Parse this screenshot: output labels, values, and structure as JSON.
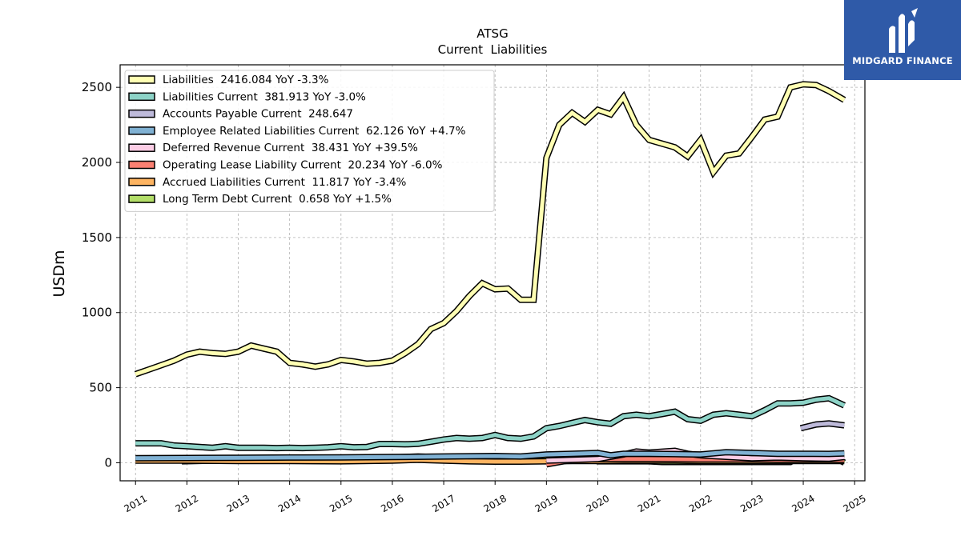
{
  "brand": {
    "name": "MIDGARD FINANCE",
    "color": "#2f5aa8"
  },
  "chart_data": {
    "type": "line",
    "title": "ATSG",
    "subtitle": "Current  Liabilities",
    "ylabel": "USDm",
    "xlabel": "",
    "xlim": [
      2010.7,
      2025.2
    ],
    "ylim": [
      -120,
      2650
    ],
    "yticks": [
      0,
      500,
      1000,
      1500,
      2000,
      2500
    ],
    "xticks": [
      "2011",
      "2012",
      "2013",
      "2014",
      "2015",
      "2016",
      "2017",
      "2018",
      "2019",
      "2020",
      "2021",
      "2022",
      "2023",
      "2024",
      "2025"
    ],
    "grid": true,
    "legend_position": "top-left",
    "series": [
      {
        "name": "Liabilities  2416.084 YoY -3.3%",
        "color": "#ffffb3",
        "points": [
          [
            2011.0,
            590
          ],
          [
            2011.25,
            620
          ],
          [
            2011.5,
            650
          ],
          [
            2011.75,
            680
          ],
          [
            2012.0,
            720
          ],
          [
            2012.25,
            740
          ],
          [
            2012.5,
            730
          ],
          [
            2012.75,
            725
          ],
          [
            2013.0,
            740
          ],
          [
            2013.25,
            780
          ],
          [
            2013.5,
            760
          ],
          [
            2013.75,
            740
          ],
          [
            2014.0,
            665
          ],
          [
            2014.25,
            655
          ],
          [
            2014.5,
            640
          ],
          [
            2014.75,
            655
          ],
          [
            2015.0,
            685
          ],
          [
            2015.25,
            675
          ],
          [
            2015.5,
            660
          ],
          [
            2015.75,
            665
          ],
          [
            2016.0,
            680
          ],
          [
            2016.25,
            730
          ],
          [
            2016.5,
            790
          ],
          [
            2016.75,
            890
          ],
          [
            2017.0,
            930
          ],
          [
            2017.25,
            1010
          ],
          [
            2017.5,
            1110
          ],
          [
            2017.75,
            1195
          ],
          [
            2018.0,
            1155
          ],
          [
            2018.25,
            1160
          ],
          [
            2018.5,
            1085
          ],
          [
            2018.75,
            1085
          ],
          [
            2019.0,
            2030
          ],
          [
            2019.25,
            2250
          ],
          [
            2019.5,
            2330
          ],
          [
            2019.75,
            2270
          ],
          [
            2020.0,
            2350
          ],
          [
            2020.25,
            2320
          ],
          [
            2020.5,
            2435
          ],
          [
            2020.75,
            2250
          ],
          [
            2021.0,
            2150
          ],
          [
            2021.5,
            2100
          ],
          [
            2021.75,
            2040
          ],
          [
            2022.0,
            2150
          ],
          [
            2022.25,
            1935
          ],
          [
            2022.5,
            2045
          ],
          [
            2022.75,
            2060
          ],
          [
            2023.0,
            2170
          ],
          [
            2023.25,
            2285
          ],
          [
            2023.5,
            2305
          ],
          [
            2023.75,
            2500
          ],
          [
            2024.0,
            2520
          ],
          [
            2024.25,
            2515
          ],
          [
            2024.5,
            2475
          ],
          [
            2024.8,
            2416
          ]
        ]
      },
      {
        "name": "Liabilities Current  381.913 YoY -3.0%",
        "color": "#8dd3c7",
        "points": [
          [
            2011.0,
            130
          ],
          [
            2011.25,
            130
          ],
          [
            2011.5,
            130
          ],
          [
            2011.75,
            115
          ],
          [
            2012.0,
            110
          ],
          [
            2012.25,
            105
          ],
          [
            2012.5,
            100
          ],
          [
            2012.75,
            110
          ],
          [
            2013.0,
            100
          ],
          [
            2013.25,
            100
          ],
          [
            2013.5,
            100
          ],
          [
            2013.75,
            98
          ],
          [
            2014.0,
            100
          ],
          [
            2014.25,
            98
          ],
          [
            2014.5,
            100
          ],
          [
            2014.75,
            103
          ],
          [
            2015.0,
            110
          ],
          [
            2015.25,
            103
          ],
          [
            2015.5,
            105
          ],
          [
            2015.75,
            125
          ],
          [
            2016.0,
            125
          ],
          [
            2016.25,
            123
          ],
          [
            2016.5,
            126
          ],
          [
            2016.75,
            140
          ],
          [
            2017.0,
            155
          ],
          [
            2017.25,
            165
          ],
          [
            2017.5,
            160
          ],
          [
            2017.75,
            165
          ],
          [
            2018.0,
            185
          ],
          [
            2018.25,
            165
          ],
          [
            2018.5,
            160
          ],
          [
            2018.75,
            175
          ],
          [
            2019.0,
            230
          ],
          [
            2019.25,
            245
          ],
          [
            2019.5,
            265
          ],
          [
            2019.75,
            285
          ],
          [
            2020.0,
            270
          ],
          [
            2020.25,
            260
          ],
          [
            2020.5,
            310
          ],
          [
            2020.75,
            320
          ],
          [
            2021.0,
            310
          ],
          [
            2021.25,
            325
          ],
          [
            2021.5,
            340
          ],
          [
            2021.75,
            290
          ],
          [
            2022.0,
            280
          ],
          [
            2022.25,
            320
          ],
          [
            2022.5,
            330
          ],
          [
            2022.75,
            320
          ],
          [
            2023.0,
            310
          ],
          [
            2023.25,
            350
          ],
          [
            2023.5,
            395
          ],
          [
            2023.75,
            395
          ],
          [
            2024.0,
            400
          ],
          [
            2024.25,
            420
          ],
          [
            2024.5,
            430
          ],
          [
            2024.8,
            382
          ]
        ]
      },
      {
        "name": "Accounts Payable Current  248.647",
        "color": "#bebada",
        "points": [
          [
            2023.95,
            230
          ],
          [
            2024.25,
            255
          ],
          [
            2024.5,
            262
          ],
          [
            2024.8,
            249
          ]
        ]
      },
      {
        "name": "Employee Related Liabilities Current  62.126 YoY +4.7%",
        "color": "#80b1d3",
        "points": [
          [
            2011.0,
            30
          ],
          [
            2012.0,
            32
          ],
          [
            2013.0,
            33
          ],
          [
            2014.0,
            35
          ],
          [
            2015.0,
            36
          ],
          [
            2016.0,
            38
          ],
          [
            2017.0,
            42
          ],
          [
            2018.0,
            45
          ],
          [
            2018.5,
            42
          ],
          [
            2019.0,
            55
          ],
          [
            2019.5,
            60
          ],
          [
            2020.0,
            65
          ],
          [
            2020.25,
            50
          ],
          [
            2020.5,
            60
          ],
          [
            2021.0,
            60
          ],
          [
            2021.5,
            58
          ],
          [
            2022.0,
            55
          ],
          [
            2022.5,
            70
          ],
          [
            2023.0,
            65
          ],
          [
            2023.5,
            60
          ],
          [
            2024.0,
            60
          ],
          [
            2024.5,
            59
          ],
          [
            2024.8,
            62
          ]
        ]
      },
      {
        "name": "Deferred Revenue Current  38.431 YoY +39.5%",
        "color": "#fccde5",
        "points": [
          [
            2019.0,
            15
          ],
          [
            2019.5,
            20
          ],
          [
            2020.0,
            25
          ],
          [
            2020.5,
            55
          ],
          [
            2020.75,
            75
          ],
          [
            2021.0,
            68
          ],
          [
            2021.5,
            80
          ],
          [
            2021.75,
            60
          ],
          [
            2022.0,
            50
          ],
          [
            2022.5,
            40
          ],
          [
            2023.0,
            30
          ],
          [
            2023.5,
            35
          ],
          [
            2024.0,
            30
          ],
          [
            2024.5,
            28
          ],
          [
            2024.8,
            38
          ]
        ]
      },
      {
        "name": "Operating Lease Liability Current  20.234 YoY -6.0%",
        "color": "#fb8072",
        "points": [
          [
            2019.0,
            -10
          ],
          [
            2019.5,
            20
          ],
          [
            2020.0,
            25
          ],
          [
            2020.5,
            25
          ],
          [
            2021.0,
            25
          ],
          [
            2021.5,
            24
          ],
          [
            2022.0,
            23
          ],
          [
            2022.5,
            22
          ],
          [
            2023.0,
            22
          ],
          [
            2023.5,
            21
          ],
          [
            2024.0,
            21
          ],
          [
            2024.5,
            21
          ],
          [
            2024.8,
            20
          ]
        ]
      },
      {
        "name": "Accrued Liabilities Current  11.817 YoY -3.4%",
        "color": "#fdb462",
        "points": [
          [
            2011.0,
            15
          ],
          [
            2012.0,
            15
          ],
          [
            2013.0,
            12
          ],
          [
            2014.0,
            12
          ],
          [
            2015.0,
            10
          ],
          [
            2016.0,
            15
          ],
          [
            2016.5,
            20
          ],
          [
            2017.0,
            15
          ],
          [
            2017.5,
            10
          ],
          [
            2018.0,
            8
          ],
          [
            2018.5,
            8
          ],
          [
            2019.0,
            10
          ],
          [
            2019.5,
            12
          ],
          [
            2020.0,
            12
          ],
          [
            2020.5,
            14
          ],
          [
            2021.0,
            14
          ],
          [
            2021.5,
            14
          ],
          [
            2022.0,
            12
          ],
          [
            2022.5,
            12
          ],
          [
            2023.0,
            12
          ],
          [
            2023.5,
            12
          ],
          [
            2024.0,
            12
          ],
          [
            2024.5,
            12
          ],
          [
            2024.8,
            12
          ]
        ]
      },
      {
        "name": "Long Term Debt Current  0.658 YoY +1.5%",
        "color": "#b3de69",
        "points": [
          [
            2011.9,
            10
          ],
          [
            2012.5,
            15
          ],
          [
            2013.0,
            20
          ],
          [
            2014.0,
            25
          ],
          [
            2015.0,
            28
          ],
          [
            2015.5,
            28
          ],
          [
            2016.0,
            35
          ],
          [
            2016.5,
            42
          ],
          [
            2017.0,
            35
          ],
          [
            2017.5,
            25
          ],
          [
            2018.0,
            20
          ],
          [
            2018.5,
            20
          ],
          [
            2019.0,
            30
          ],
          [
            2019.5,
            38
          ],
          [
            2019.75,
            42
          ],
          [
            2020.0,
            10
          ],
          [
            2020.5,
            10
          ],
          [
            2021.0,
            10
          ],
          [
            2021.25,
            5
          ],
          [
            2022.0,
            5
          ],
          [
            2022.5,
            5
          ],
          [
            2023.0,
            5
          ],
          [
            2023.5,
            5
          ],
          [
            2023.75,
            5
          ],
          [
            2024.0,
            55
          ],
          [
            2024.5,
            55
          ],
          [
            2024.8,
            1
          ]
        ]
      }
    ]
  }
}
